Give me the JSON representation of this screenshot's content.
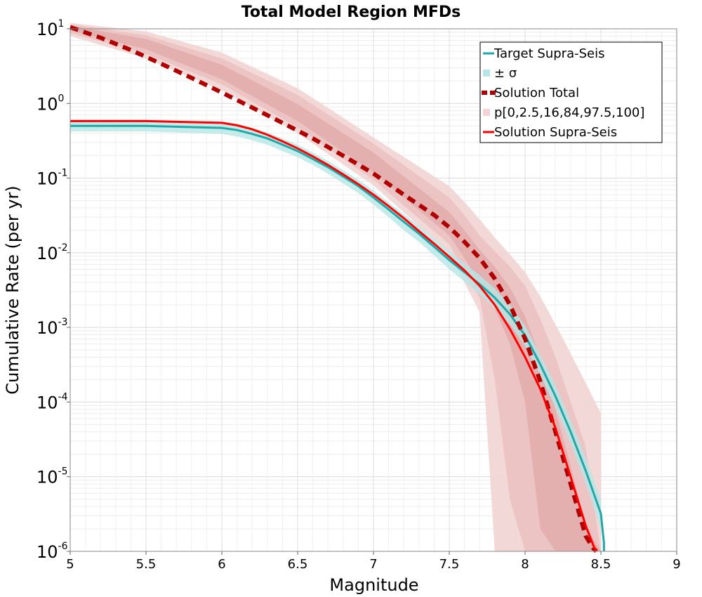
{
  "chart_data": {
    "type": "line",
    "title": "Total Model Region MFDs",
    "xlabel": "Magnitude",
    "ylabel": "Cumulative Rate (per yr)",
    "xlim": [
      5,
      9
    ],
    "ylim": [
      1e-06,
      10
    ],
    "yscale": "log",
    "grid": true,
    "legend_position": "top-right",
    "xticks": [
      "5",
      "5.5",
      "6",
      "6.5",
      "7",
      "7.5",
      "8",
      "8.5",
      "9"
    ],
    "yticks": [
      {
        "base": "10",
        "exp": "1"
      },
      {
        "base": "10",
        "exp": "0"
      },
      {
        "base": "10",
        "exp": "-1"
      },
      {
        "base": "10",
        "exp": "-2"
      },
      {
        "base": "10",
        "exp": "-3"
      },
      {
        "base": "10",
        "exp": "-4"
      },
      {
        "base": "10",
        "exp": "-5"
      },
      {
        "base": "10",
        "exp": "-6"
      }
    ],
    "colors": {
      "target": "#20a8a8",
      "target_band": "#b8e6e6",
      "solution_total": "#b00000",
      "pband_outer": "#f2d4d4",
      "pband_mid": "#eabebe",
      "pband_inner": "#e0a6a6",
      "solution_supra": "#ff0000"
    },
    "legend": [
      {
        "label": "Target Supra-Seis",
        "key": "target"
      },
      {
        "label": "± σ",
        "key": "target_band"
      },
      {
        "label": "Solution Total",
        "key": "solution_total"
      },
      {
        "label": "p[0,2.5,16,84,97.5,100]",
        "key": "pband"
      },
      {
        "label": "Solution Supra-Seis",
        "key": "solution_supra"
      }
    ],
    "series": [
      {
        "name": "Target Supra-Seis",
        "x": [
          5.0,
          5.5,
          6.0,
          6.1,
          6.2,
          6.3,
          6.4,
          6.5,
          6.6,
          6.7,
          6.8,
          6.9,
          7.0,
          7.1,
          7.2,
          7.3,
          7.4,
          7.5,
          7.6,
          7.7,
          7.8,
          7.9,
          8.0,
          8.1,
          8.2,
          8.3,
          8.4,
          8.5,
          8.52,
          8.52
        ],
        "y": [
          0.5,
          0.5,
          0.47,
          0.44,
          0.39,
          0.34,
          0.28,
          0.23,
          0.18,
          0.14,
          0.105,
          0.078,
          0.055,
          0.038,
          0.026,
          0.018,
          0.012,
          0.008,
          0.0055,
          0.0038,
          0.0025,
          0.0015,
          0.00078,
          0.00032,
          0.00012,
          4e-05,
          1.2e-05,
          3.2e-06,
          1.3e-06,
          1e-06
        ]
      },
      {
        "name": "± σ",
        "x": [
          5.0,
          5.5,
          6.0,
          6.1,
          6.2,
          6.3,
          6.4,
          6.5,
          6.6,
          6.7,
          6.8,
          6.9,
          7.0,
          7.1,
          7.2,
          7.3,
          7.4,
          7.5,
          7.6,
          7.7,
          7.8,
          7.9,
          8.0,
          8.1,
          8.2,
          8.3,
          8.4,
          8.5
        ],
        "upper": [
          0.6,
          0.6,
          0.57,
          0.53,
          0.47,
          0.41,
          0.34,
          0.28,
          0.22,
          0.17,
          0.128,
          0.095,
          0.068,
          0.047,
          0.033,
          0.023,
          0.0155,
          0.0105,
          0.0072,
          0.005,
          0.0033,
          0.002,
          0.00105,
          0.00043,
          0.00017,
          5.8e-05,
          1.8e-05,
          5e-06
        ],
        "lower": [
          0.42,
          0.42,
          0.39,
          0.36,
          0.32,
          0.28,
          0.23,
          0.19,
          0.15,
          0.115,
          0.085,
          0.063,
          0.044,
          0.03,
          0.02,
          0.014,
          0.0092,
          0.006,
          0.0041,
          0.0028,
          0.0018,
          0.0011,
          0.00057,
          0.00023,
          8.5e-05,
          2.8e-05,
          8e-06,
          2e-06
        ]
      },
      {
        "name": "Solution Total",
        "x": [
          5.0,
          5.2,
          5.4,
          5.6,
          5.8,
          6.0,
          6.2,
          6.4,
          6.6,
          6.8,
          7.0,
          7.2,
          7.4,
          7.5,
          7.6,
          7.7,
          7.8,
          7.9,
          8.0,
          8.1,
          8.2,
          8.3,
          8.4,
          8.45,
          8.47
        ],
        "y": [
          10.5,
          7.6,
          5.2,
          3.4,
          2.2,
          1.4,
          0.88,
          0.55,
          0.34,
          0.2,
          0.115,
          0.06,
          0.032,
          0.022,
          0.014,
          0.0085,
          0.0045,
          0.002,
          0.0007,
          0.00019,
          4e-05,
          8e-06,
          1.6e-06,
          1.1e-06,
          1e-06
        ]
      },
      {
        "name": "p[0,2.5,16,84,97.5,100]",
        "x": [
          5.0,
          5.5,
          6.0,
          6.5,
          7.0,
          7.5,
          7.6,
          7.7,
          7.8,
          7.9,
          8.0,
          8.1,
          8.2,
          8.3,
          8.4,
          8.5
        ],
        "p0": [
          8.0,
          4.0,
          1.5,
          0.4,
          0.08,
          0.01,
          0.004,
          0.0016,
          1e-06,
          1e-06,
          1e-06,
          1e-06,
          1e-06,
          1e-06,
          1e-06,
          1e-06
        ],
        "p2_5": [
          8.8,
          4.6,
          1.8,
          0.48,
          0.095,
          0.013,
          0.0055,
          0.0025,
          0.0002,
          5e-06,
          1e-06,
          1e-06,
          1e-06,
          1e-06,
          1e-06,
          1e-06
        ],
        "p16": [
          9.5,
          5.3,
          2.1,
          0.58,
          0.12,
          0.017,
          0.0085,
          0.004,
          0.0018,
          0.0006,
          0.0001,
          2e-06,
          1e-06,
          1e-06,
          1e-06,
          1e-06
        ],
        "p84": [
          11.0,
          7.3,
          3.3,
          0.98,
          0.22,
          0.035,
          0.02,
          0.011,
          0.0065,
          0.0034,
          0.0014,
          0.0004,
          8e-05,
          1.4e-05,
          2.2e-06,
          1e-06
        ],
        "p97_5": [
          11.5,
          8.2,
          4.0,
          1.3,
          0.29,
          0.055,
          0.032,
          0.017,
          0.0105,
          0.0065,
          0.0036,
          0.0013,
          0.0004,
          0.0001,
          2.5e-05,
          1e-06
        ],
        "p100": [
          12.0,
          9.2,
          4.8,
          1.6,
          0.35,
          0.078,
          0.048,
          0.028,
          0.016,
          0.0095,
          0.0055,
          0.0026,
          0.0011,
          0.00045,
          0.00018,
          7e-05
        ]
      },
      {
        "name": "Solution Supra-Seis",
        "x": [
          5.0,
          5.5,
          6.0,
          6.1,
          6.2,
          6.3,
          6.4,
          6.5,
          6.6,
          6.7,
          6.8,
          6.9,
          7.0,
          7.1,
          7.2,
          7.3,
          7.4,
          7.5,
          7.6,
          7.7,
          7.8,
          7.9,
          8.0,
          8.1,
          8.2,
          8.3,
          8.4,
          8.45,
          8.47
        ],
        "y": [
          0.58,
          0.58,
          0.55,
          0.51,
          0.45,
          0.38,
          0.31,
          0.25,
          0.195,
          0.15,
          0.112,
          0.083,
          0.06,
          0.042,
          0.029,
          0.0195,
          0.0132,
          0.0088,
          0.0058,
          0.0036,
          0.002,
          0.00095,
          0.0004,
          0.00015,
          4.5e-05,
          1e-05,
          2.2e-06,
          1.2e-06,
          1e-06
        ]
      }
    ]
  }
}
